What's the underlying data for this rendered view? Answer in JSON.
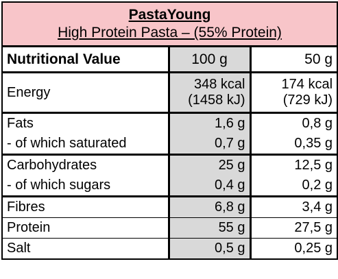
{
  "title": {
    "brand": "PastaYoung",
    "subtitle": "High Protein Pasta – (55% Protein)"
  },
  "header": {
    "label": "Nutritional Value",
    "col_100": "100 g",
    "col_50": "50 g"
  },
  "rows": [
    {
      "label": "Energy",
      "v100_line1": "348 kcal",
      "v100_line2": "(1458 kJ)",
      "v50_line1": "174 kcal",
      "v50_line2": "(729 kJ)"
    },
    {
      "label": "Fats",
      "v100": "1,6 g",
      "v50": "0,8 g"
    },
    {
      "label": " - of which saturated",
      "v100": "0,7 g",
      "v50": "0,35 g"
    },
    {
      "label": "Carbohydrates",
      "v100": "25 g",
      "v50": "12,5 g"
    },
    {
      "label": " - of which sugars",
      "v100": "0,4 g",
      "v50": "0,2 g"
    },
    {
      "label": "Fibres",
      "v100": "6,8 g",
      "v50": "3,4 g"
    },
    {
      "label": "Protein",
      "v100": "55 g",
      "v50": "27,5 g"
    },
    {
      "label": "Salt",
      "v100": "0,5 g",
      "v50": "0,25 g"
    }
  ],
  "colors": {
    "title_background": "#f8c5c9",
    "column_shade": "#d9d9d9"
  }
}
